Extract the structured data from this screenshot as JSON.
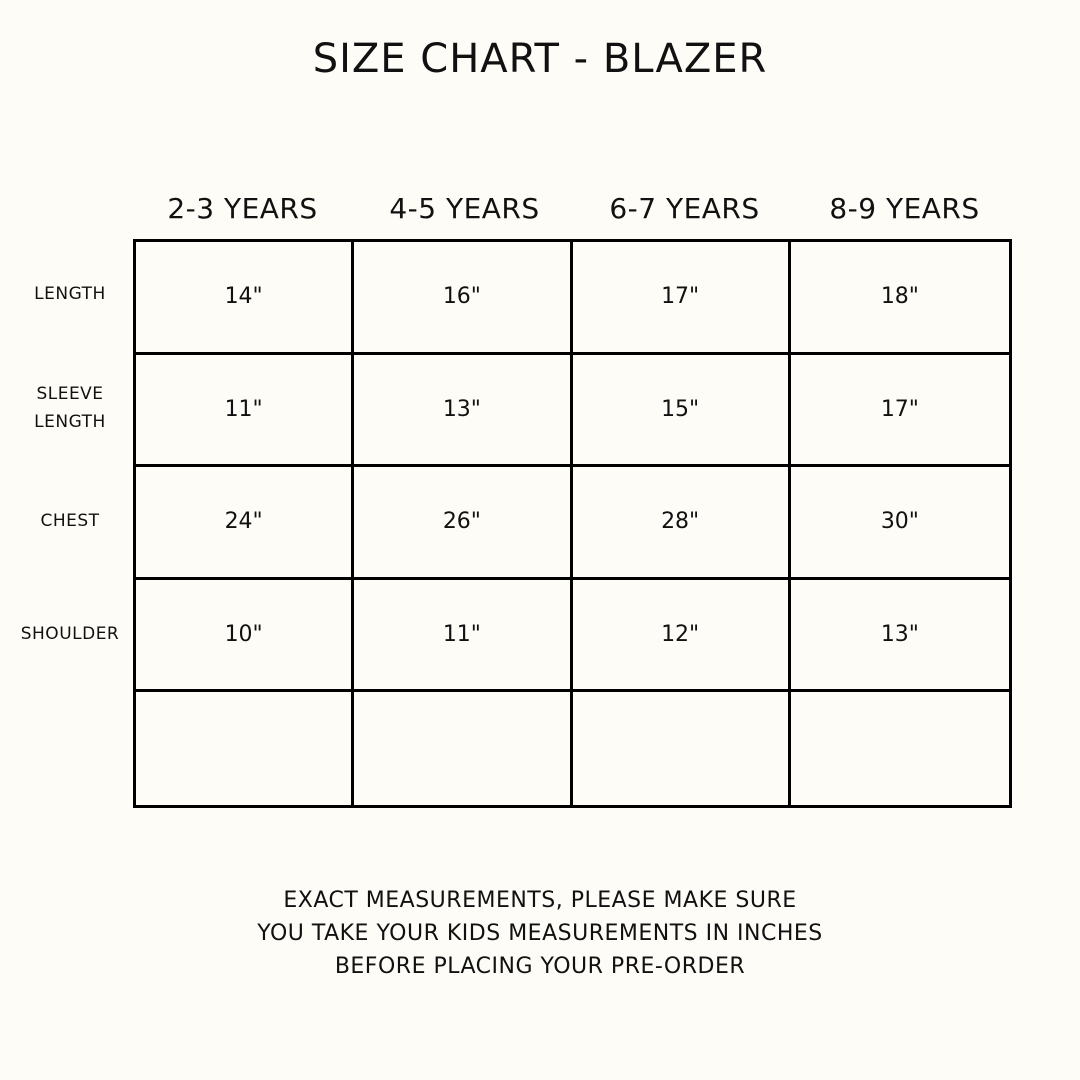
{
  "title": "SIZE CHART - BLAZER",
  "columns": [
    "2-3 YEARS",
    "4-5 YEARS",
    "6-7 YEARS",
    "8-9 YEARS"
  ],
  "rows": [
    {
      "label": "LENGTH",
      "values": [
        "14\"",
        "16\"",
        "17\"",
        "18\""
      ]
    },
    {
      "label": "SLEEVE LENGTH",
      "values": [
        "11\"",
        "13\"",
        "15\"",
        "17\""
      ]
    },
    {
      "label": "CHEST",
      "values": [
        "24\"",
        "26\"",
        "28\"",
        "30\""
      ]
    },
    {
      "label": "SHOULDER",
      "values": [
        "10\"",
        "11\"",
        "12\"",
        "13\""
      ]
    },
    {
      "label": "",
      "values": [
        "",
        "",
        "",
        ""
      ]
    }
  ],
  "note": [
    "EXACT MEASUREMENTS, PLEASE MAKE SURE",
    "YOU TAKE YOUR KIDS MEASUREMENTS IN INCHES",
    "BEFORE PLACING YOUR PRE-ORDER"
  ],
  "colors": {
    "background": "#fdfcf7",
    "lines": "#000000",
    "text": "#111111"
  }
}
